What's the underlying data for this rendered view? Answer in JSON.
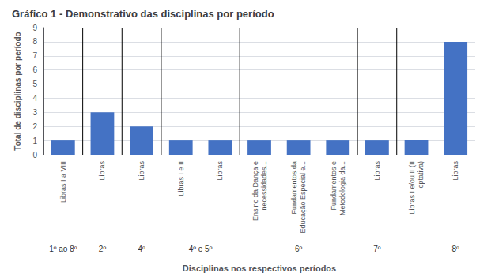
{
  "chart_data": {
    "type": "bar",
    "title": "Gráfico 1 - Demonstrativo das disciplinas por período",
    "xlabel": "Disciplinas nos respectivos períodos",
    "ylabel": "Total de disciplinas por período",
    "categories": [
      "Libras I a VIII",
      "Libras",
      "Libras",
      "Libras I e II",
      "Libras",
      "Ensino da Dança e\nnecessidades...",
      "Fundamentos da\nEducação Especial e...",
      "Fundamentos e\nMetodologia da...",
      "Libras",
      "Libras I e/ou II (II\noptativa)",
      "Libras"
    ],
    "values": [
      1,
      3,
      2,
      1,
      1,
      1,
      1,
      1,
      1,
      1,
      8
    ],
    "color": "#4472C4",
    "ylim": [
      0,
      9
    ],
    "yticks": [
      0,
      1,
      2,
      3,
      4,
      5,
      6,
      7,
      8,
      9
    ],
    "grid": true,
    "separators": [
      0.5,
      1.5,
      2.5,
      4.5,
      7.5,
      8.5
    ],
    "annotations": [
      {
        "text": "1º ao 8º",
        "x": 0
      },
      {
        "text": "2º",
        "x": 1
      },
      {
        "text": "4º",
        "x": 2
      },
      {
        "text": "4º e 5º",
        "x": 3.5
      },
      {
        "text": "6º",
        "x": 6
      },
      {
        "text": "7º",
        "x": 8
      },
      {
        "text": "8º",
        "x": 10
      }
    ]
  }
}
